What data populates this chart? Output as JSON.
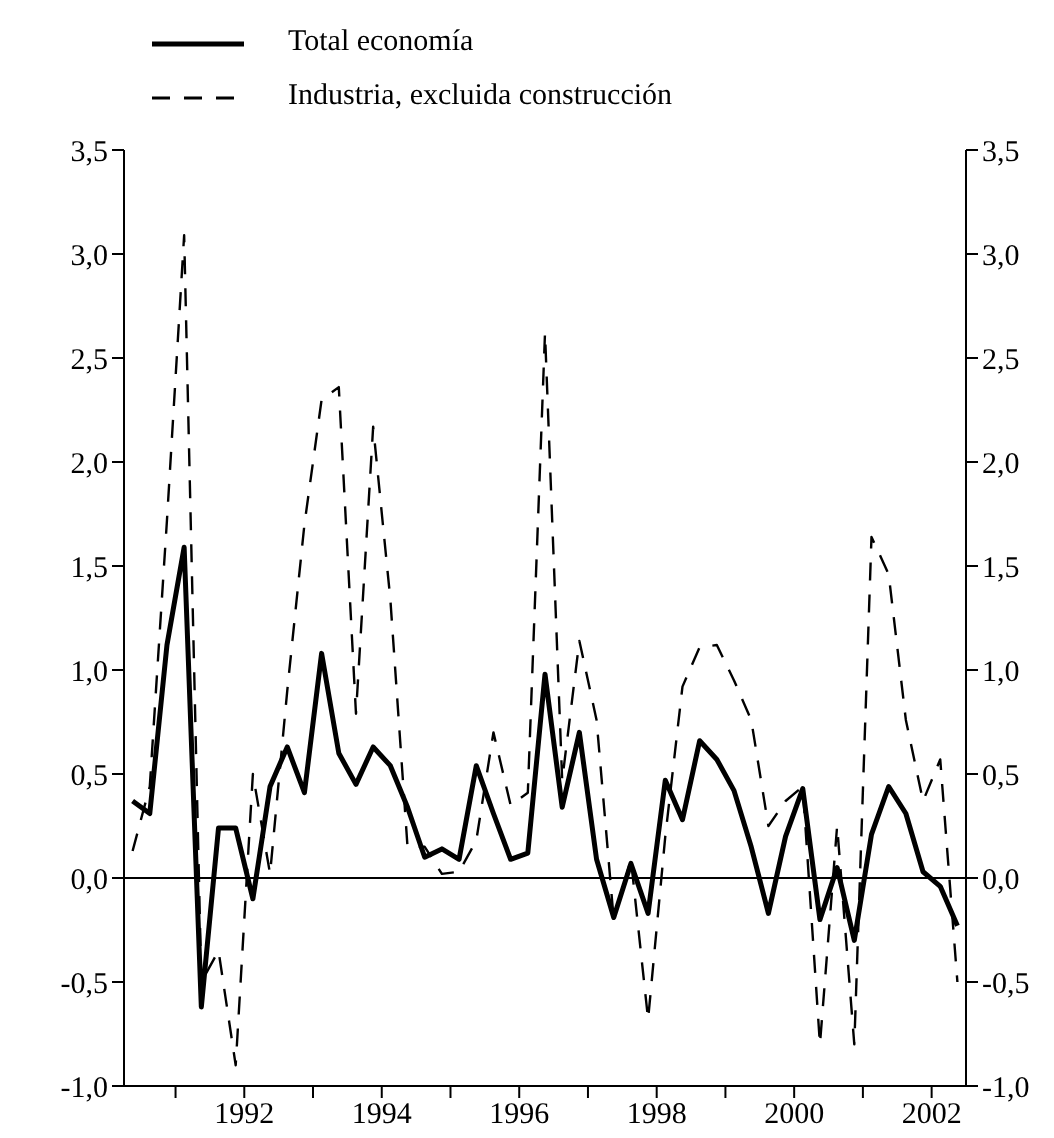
{
  "chart_data": {
    "type": "line",
    "x": [
      1990.375,
      1990.625,
      1990.875,
      1991.125,
      1991.375,
      1991.625,
      1991.875,
      1992.125,
      1992.375,
      1992.625,
      1992.875,
      1993.125,
      1993.375,
      1993.625,
      1993.875,
      1994.125,
      1994.375,
      1994.625,
      1994.875,
      1995.125,
      1995.375,
      1995.625,
      1995.875,
      1996.125,
      1996.375,
      1996.625,
      1996.875,
      1997.125,
      1997.375,
      1997.625,
      1997.875,
      1998.125,
      1998.375,
      1998.625,
      1998.875,
      1999.125,
      1999.375,
      1999.625,
      1999.875,
      2000.125,
      2000.375,
      2000.625,
      2000.875,
      2001.125,
      2001.375,
      2001.625,
      2001.875,
      2002.125,
      2002.375
    ],
    "series": [
      {
        "name": "Total economía",
        "color": "#000000",
        "line_style": "solid",
        "values": [
          0.37,
          0.31,
          1.12,
          1.59,
          -0.62,
          0.24,
          0.24,
          -0.1,
          0.44,
          0.63,
          0.41,
          1.08,
          0.6,
          0.45,
          0.63,
          0.54,
          0.34,
          0.1,
          0.14,
          0.09,
          0.54,
          0.31,
          0.09,
          0.12,
          0.98,
          0.34,
          0.7,
          0.09,
          -0.19,
          0.07,
          -0.17,
          0.47,
          0.28,
          0.66,
          0.57,
          0.42,
          0.15,
          -0.17,
          0.2,
          0.43,
          -0.2,
          0.05,
          -0.3,
          0.21,
          0.44,
          0.31,
          0.03,
          -0.04,
          -0.23
        ]
      },
      {
        "name": "Industria, excluida construcción",
        "color": "#000000",
        "line_style": "dashed",
        "values": [
          0.13,
          0.44,
          1.72,
          3.09,
          -0.5,
          -0.35,
          -0.9,
          0.5,
          0.02,
          0.9,
          1.7,
          2.3,
          2.36,
          0.79,
          2.17,
          1.34,
          0.15,
          0.15,
          0.02,
          0.03,
          0.18,
          0.7,
          0.35,
          0.41,
          2.62,
          0.47,
          1.14,
          0.76,
          -0.2,
          0.09,
          -0.68,
          0.2,
          0.92,
          1.11,
          1.12,
          0.95,
          0.76,
          0.25,
          0.37,
          0.44,
          -0.8,
          0.25,
          -0.8,
          1.64,
          1.46,
          0.76,
          0.37,
          0.57,
          -0.5
        ]
      }
    ],
    "xlim": [
      1990.25,
      2002.5
    ],
    "xticks": [
      {
        "value": 1991,
        "label": null
      },
      1992,
      {
        "value": 1993,
        "label": null
      },
      1994,
      {
        "value": 1995,
        "label": null
      },
      1996,
      {
        "value": 1997,
        "label": null
      },
      1998,
      {
        "value": 1999,
        "label": null
      },
      2000,
      {
        "value": 2001,
        "label": null
      },
      2002
    ],
    "ylim": [
      -1.0,
      3.5
    ],
    "yticks": [
      {
        "value": -1.0,
        "label": "-1,0"
      },
      {
        "value": -0.5,
        "label": "-0,5"
      },
      {
        "value": 0.0,
        "label": "0,0"
      },
      {
        "value": 0.5,
        "label": "0,5"
      },
      {
        "value": 1.0,
        "label": "1,0"
      },
      {
        "value": 1.5,
        "label": "1,5"
      },
      {
        "value": 2.0,
        "label": "2,0"
      },
      {
        "value": 2.5,
        "label": "2,5"
      },
      {
        "value": 3.0,
        "label": "3,0"
      },
      {
        "value": 3.5,
        "label": "3,5"
      }
    ],
    "y2lim": [
      -1.0,
      3.5
    ],
    "y2ticks": [
      {
        "value": -1.0,
        "label": "-1,0"
      },
      {
        "value": -0.5,
        "label": "-0,5"
      },
      {
        "value": 0.0,
        "label": "0,0"
      },
      {
        "value": 0.5,
        "label": "0,5"
      },
      {
        "value": 1.0,
        "label": "1,0"
      },
      {
        "value": 1.5,
        "label": "1,5"
      },
      {
        "value": 2.0,
        "label": "2,0"
      },
      {
        "value": 2.5,
        "label": "2,5"
      },
      {
        "value": 3.0,
        "label": "3,0"
      },
      {
        "value": 3.5,
        "label": "3,5"
      }
    ],
    "ref_lines": [
      {
        "axis": "y",
        "value": 0.0,
        "color": "#000000",
        "line_style": "solid"
      }
    ],
    "legend": "top left",
    "grid": false,
    "marker": "none"
  }
}
